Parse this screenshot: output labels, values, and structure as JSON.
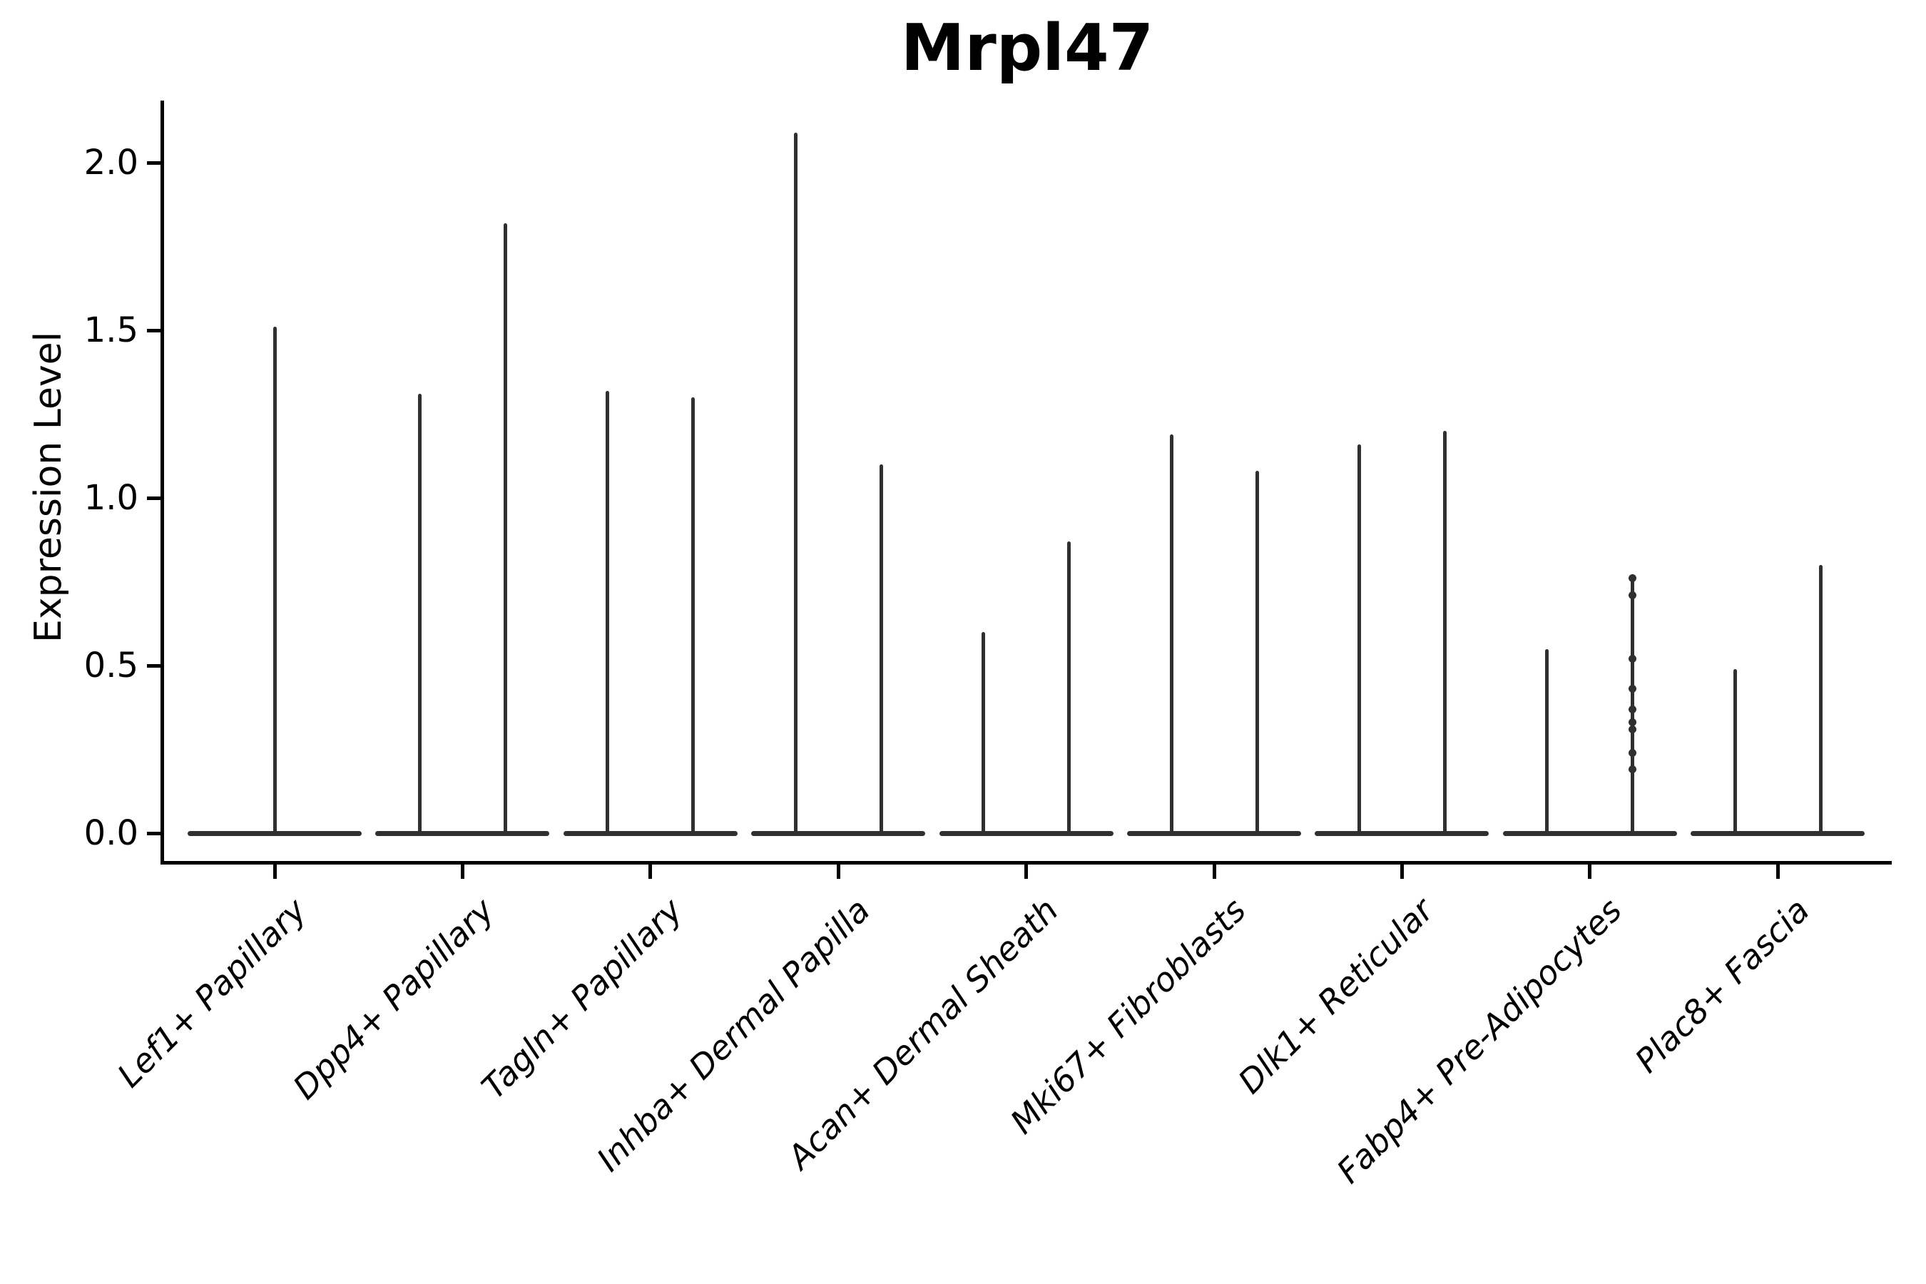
{
  "chart_data": {
    "type": "violin",
    "title": "Mrpl47",
    "ylabel": "Expression Level",
    "xlabel": "",
    "grid": false,
    "legend_position": "none",
    "ylim": [
      -0.08,
      2.19
    ],
    "yticks": {
      "values": [
        0.0,
        0.5,
        1.0,
        1.5,
        2.0
      ],
      "labels": [
        "0.0",
        "0.5",
        "1.0",
        "1.5",
        "2.0"
      ]
    },
    "categories": [
      "Lef1+ Papillary",
      "Dpp4+ Papillary",
      "Tagln+ Papillary",
      "Inhba+ Dermal Papilla",
      "Acan+ Dermal Sheath",
      "Mki67+ Fibroblasts",
      "Dlk1+ Reticular",
      "Fabp4+ Pre-Adipocytes",
      "Plac8+ Fascia"
    ],
    "violins": [
      {
        "category": "Lef1+ Papillary",
        "spikes": [
          {
            "side": "center",
            "max": 1.51
          }
        ]
      },
      {
        "category": "Dpp4+ Papillary",
        "spikes": [
          {
            "side": "left",
            "max": 1.31
          },
          {
            "side": "right",
            "max": 1.82
          }
        ]
      },
      {
        "category": "Tagln+ Papillary",
        "spikes": [
          {
            "side": "left",
            "max": 1.32
          },
          {
            "side": "right",
            "max": 1.3
          }
        ]
      },
      {
        "category": "Inhba+ Dermal Papilla",
        "spikes": [
          {
            "side": "left",
            "max": 2.09
          },
          {
            "side": "right",
            "max": 1.1
          }
        ]
      },
      {
        "category": "Acan+ Dermal Sheath",
        "spikes": [
          {
            "side": "left",
            "max": 0.6
          },
          {
            "side": "right",
            "max": 0.87
          }
        ]
      },
      {
        "category": "Mki67+ Fibroblasts",
        "spikes": [
          {
            "side": "left",
            "max": 1.19
          },
          {
            "side": "right",
            "max": 1.08
          }
        ]
      },
      {
        "category": "Dlk1+ Reticular",
        "spikes": [
          {
            "side": "left",
            "max": 1.16
          },
          {
            "side": "right",
            "max": 1.2
          }
        ]
      },
      {
        "category": "Fabp4+ Pre-Adipocytes",
        "spikes": [
          {
            "side": "left",
            "max": 0.55
          },
          {
            "side": "right",
            "max": 0.76,
            "points": [
              0.76,
              0.71,
              0.52,
              0.43,
              0.37,
              0.33,
              0.31,
              0.24,
              0.19
            ]
          }
        ]
      },
      {
        "category": "Plac8+ Fascia",
        "spikes": [
          {
            "side": "left",
            "max": 0.49
          },
          {
            "side": "right",
            "max": 0.8
          }
        ]
      }
    ],
    "colors": {
      "line": "#303030",
      "axis": "#000000",
      "text": "#000000",
      "background": "#ffffff"
    }
  }
}
